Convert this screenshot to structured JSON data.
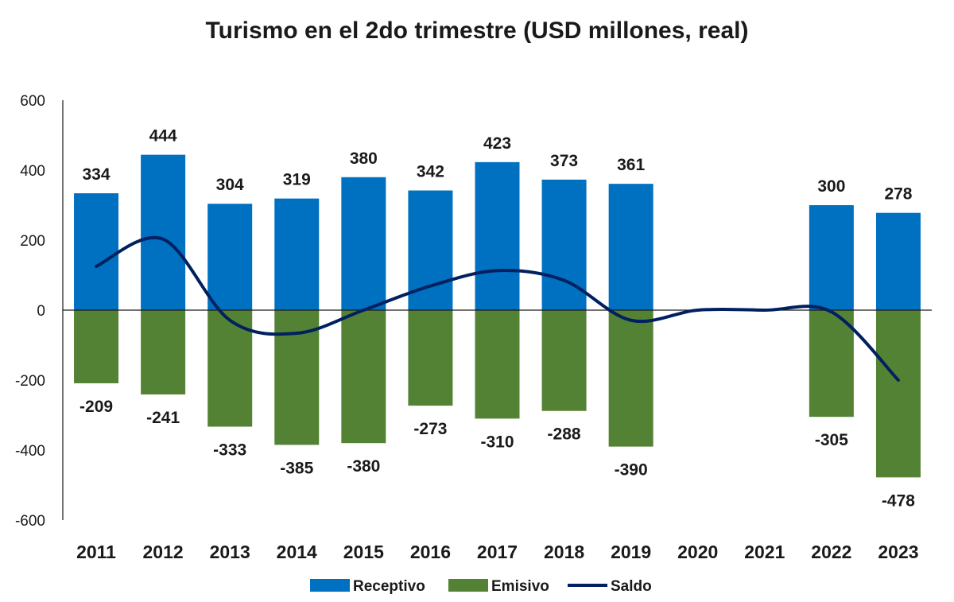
{
  "chart_data": {
    "type": "bar",
    "title": "Turismo en el 2do trimestre (USD millones, real)",
    "categories": [
      "2011",
      "2012",
      "2013",
      "2014",
      "2015",
      "2016",
      "2017",
      "2018",
      "2019",
      "2020",
      "2021",
      "2022",
      "2023"
    ],
    "ylim": [
      -600,
      600
    ],
    "yticks": [
      600,
      400,
      200,
      0,
      -200,
      -400,
      -600
    ],
    "grid": false,
    "legend_position": "bottom",
    "series": [
      {
        "name": "Receptivo",
        "type": "bar",
        "color": "#0070c0",
        "values": [
          334,
          444,
          304,
          319,
          380,
          342,
          423,
          373,
          361,
          null,
          null,
          300,
          278
        ]
      },
      {
        "name": "Emisivo",
        "type": "bar",
        "color": "#548235",
        "values": [
          -209,
          -241,
          -333,
          -385,
          -380,
          -273,
          -310,
          -288,
          -390,
          null,
          null,
          -305,
          -478
        ]
      },
      {
        "name": "Saldo",
        "type": "line",
        "color": "#002060",
        "values": [
          125,
          203,
          -29,
          -66,
          0,
          69,
          113,
          85,
          -29,
          0,
          0,
          -5,
          -200
        ]
      }
    ]
  }
}
